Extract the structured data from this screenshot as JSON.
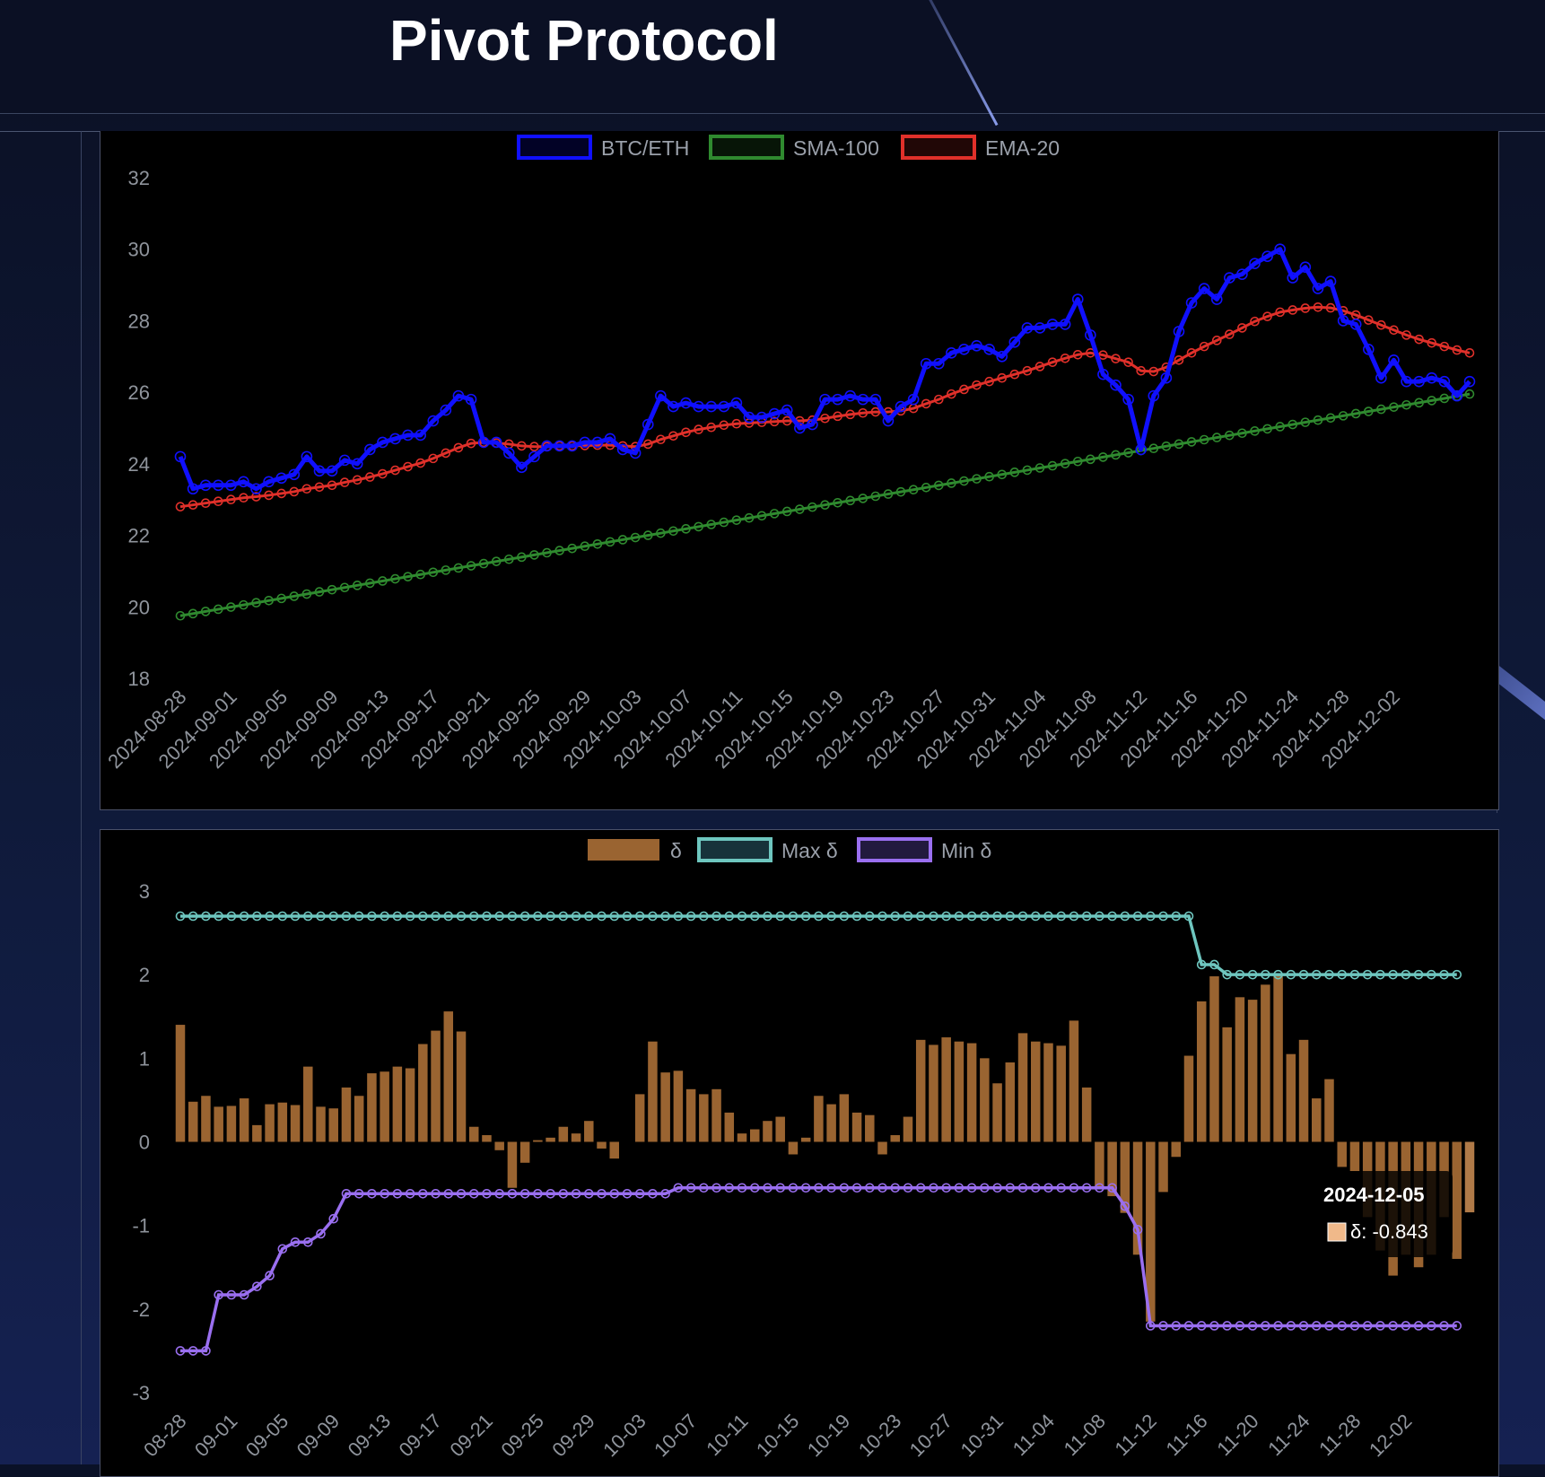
{
  "header": {
    "title": "Pivot Protocol"
  },
  "chart_data": [
    {
      "type": "line",
      "legend": [
        "BTC/ETH",
        "SMA-100",
        "EMA-20"
      ],
      "legend_placement": "top",
      "ylim": [
        18,
        32
      ],
      "yticks": [
        "32",
        "30",
        "28",
        "26",
        "24",
        "22",
        "20",
        "18"
      ],
      "xticks": [
        "2024-08-28",
        "2024-09-01",
        "2024-09-05",
        "2024-09-09",
        "2024-09-13",
        "2024-09-17",
        "2024-09-21",
        "2024-09-25",
        "2024-09-29",
        "2024-10-03",
        "2024-10-07",
        "2024-10-11",
        "2024-10-15",
        "2024-10-19",
        "2024-10-23",
        "2024-10-27",
        "2024-10-31",
        "2024-11-04",
        "2024-11-08",
        "2024-11-12",
        "2024-11-16",
        "2024-11-20",
        "2024-11-24",
        "2024-11-28",
        "2024-12-02"
      ],
      "x_start": "2024-08-28",
      "x_end": "2024-12-05",
      "series": [
        {
          "name": "BTC/ETH",
          "color": "#1010ff",
          "values": [
            24.2,
            23.3,
            23.4,
            23.4,
            23.4,
            23.5,
            23.3,
            23.5,
            23.6,
            23.7,
            24.2,
            23.8,
            23.8,
            24.1,
            24.0,
            24.4,
            24.6,
            24.7,
            24.8,
            24.8,
            25.2,
            25.5,
            25.9,
            25.8,
            24.6,
            24.6,
            24.3,
            23.9,
            24.2,
            24.5,
            24.5,
            24.5,
            24.6,
            24.6,
            24.7,
            24.4,
            24.3,
            25.1,
            25.9,
            25.6,
            25.7,
            25.6,
            25.6,
            25.6,
            25.7,
            25.3,
            25.3,
            25.4,
            25.5,
            25.0,
            25.1,
            25.8,
            25.8,
            25.9,
            25.8,
            25.8,
            25.2,
            25.6,
            25.8,
            26.8,
            26.8,
            27.1,
            27.2,
            27.3,
            27.2,
            27.0,
            27.4,
            27.8,
            27.8,
            27.9,
            27.9,
            28.6,
            27.6,
            26.5,
            26.2,
            25.8,
            24.4,
            25.9,
            26.4,
            27.7,
            28.5,
            28.9,
            28.6,
            29.2,
            29.3,
            29.6,
            29.8,
            30.0,
            29.2,
            29.5,
            28.9,
            29.1,
            28.0,
            27.9,
            27.2,
            26.4,
            26.9,
            26.3,
            26.3,
            26.4,
            26.3,
            25.9,
            26.3
          ]
        },
        {
          "name": "SMA-100",
          "color": "#2f8a2f",
          "values": [
            19.75,
            25.95
          ]
        },
        {
          "name": "EMA-20",
          "color": "#e0302a",
          "values": [
            22.8,
            22.85,
            22.9,
            22.95,
            23.0,
            23.05,
            23.08,
            23.12,
            23.17,
            23.22,
            23.3,
            23.35,
            23.4,
            23.48,
            23.55,
            23.63,
            23.72,
            23.82,
            23.92,
            24.02,
            24.15,
            24.3,
            24.45,
            24.57,
            24.6,
            24.58,
            24.55,
            24.5,
            24.48,
            24.48,
            24.5,
            24.5,
            24.51,
            24.52,
            24.52,
            24.5,
            24.48,
            24.55,
            24.68,
            24.78,
            24.88,
            24.96,
            25.02,
            25.08,
            25.12,
            25.14,
            25.16,
            25.18,
            25.2,
            25.2,
            25.22,
            25.27,
            25.33,
            25.38,
            25.42,
            25.45,
            25.45,
            25.48,
            25.55,
            25.68,
            25.8,
            25.95,
            26.08,
            26.2,
            26.3,
            26.4,
            26.5,
            26.6,
            26.72,
            26.84,
            26.95,
            27.05,
            27.1,
            27.04,
            26.94,
            26.84,
            26.6,
            26.58,
            26.7,
            26.9,
            27.1,
            27.28,
            27.45,
            27.62,
            27.8,
            27.98,
            28.12,
            28.24,
            28.3,
            28.35,
            28.38,
            28.36,
            28.28,
            28.16,
            28.02,
            27.88,
            27.74,
            27.6,
            27.48,
            27.38,
            27.28,
            27.18,
            27.1
          ]
        }
      ]
    },
    {
      "type": "bar",
      "legend": [
        "δ",
        "Max δ",
        "Min δ"
      ],
      "legend_placement": "top",
      "ylim": [
        -3,
        3
      ],
      "yticks": [
        "3",
        "2",
        "1",
        "0",
        "-1",
        "-2",
        "-3"
      ],
      "xticks": [
        "08-28",
        "09-01",
        "09-05",
        "09-09",
        "09-13",
        "09-17",
        "09-21",
        "09-25",
        "09-29",
        "10-03",
        "10-07",
        "10-11",
        "10-15",
        "10-19",
        "10-23",
        "10-27",
        "10-31",
        "11-04",
        "11-08",
        "11-12",
        "11-16",
        "11-20",
        "11-24",
        "11-28",
        "12-02"
      ],
      "series": [
        {
          "name": "δ",
          "color": "#9a6431",
          "values": [
            1.4,
            0.48,
            0.55,
            0.42,
            0.43,
            0.52,
            0.2,
            0.45,
            0.47,
            0.44,
            0.9,
            0.42,
            0.4,
            0.65,
            0.55,
            0.82,
            0.84,
            0.9,
            0.88,
            1.17,
            1.33,
            1.56,
            1.32,
            0.18,
            0.08,
            -0.1,
            -0.55,
            -0.25,
            0.02,
            0.05,
            0.18,
            0.1,
            0.25,
            -0.08,
            -0.2,
            0.0,
            0.57,
            1.2,
            0.83,
            0.85,
            0.63,
            0.57,
            0.63,
            0.35,
            0.1,
            0.15,
            0.25,
            0.3,
            -0.15,
            0.05,
            0.55,
            0.45,
            0.57,
            0.35,
            0.32,
            -0.15,
            0.08,
            0.3,
            1.22,
            1.16,
            1.25,
            1.2,
            1.18,
            1.0,
            0.7,
            0.95,
            1.3,
            1.2,
            1.18,
            1.15,
            1.45,
            0.65,
            -0.55,
            -0.65,
            -0.85,
            -1.35,
            -2.15,
            -0.6,
            -0.18,
            1.03,
            1.68,
            1.98,
            1.37,
            1.73,
            1.7,
            1.88,
            2.0,
            1.05,
            1.22,
            0.52,
            0.75,
            -0.3,
            -0.35,
            -0.9,
            -1.3,
            -1.6,
            -1.35,
            -1.5,
            -1.35,
            -0.9,
            -1.4,
            -0.843
          ]
        },
        {
          "name": "Max δ",
          "color": "#6ec6bf",
          "values": [
            2.7,
            2.12,
            2.0
          ]
        },
        {
          "name": "Min δ",
          "color": "#9a6ff0",
          "values": [
            -2.5,
            -2.5,
            -2.5,
            -1.83,
            -1.83,
            -1.83,
            -1.73,
            -1.6,
            -1.28,
            -1.2,
            -1.2,
            -1.1,
            -0.92,
            -0.62,
            -0.62,
            -0.62,
            -0.62,
            -0.62,
            -0.62,
            -0.62,
            -0.62,
            -0.62,
            -0.62,
            -0.62,
            -0.62,
            -0.62,
            -0.62,
            -0.62,
            -0.62,
            -0.62,
            -0.62,
            -0.62,
            -0.62,
            -0.62,
            -0.62,
            -0.62,
            -0.62,
            -0.62,
            -0.62,
            -0.55,
            -0.55,
            -0.55,
            -0.55,
            -0.55,
            -0.55,
            -0.55,
            -0.55,
            -0.55,
            -0.55,
            -0.55,
            -0.55,
            -0.55,
            -0.55,
            -0.55,
            -0.55,
            -0.55,
            -0.55,
            -0.55,
            -0.55,
            -0.55,
            -0.55,
            -0.55,
            -0.55,
            -0.55,
            -0.55,
            -0.55,
            -0.55,
            -0.55,
            -0.55,
            -0.55,
            -0.55,
            -0.55,
            -0.55,
            -0.55,
            -0.77,
            -1.05,
            -2.2
          ]
        }
      ],
      "tooltip": {
        "date": "2024-12-05",
        "label": "δ: -0.843"
      }
    }
  ]
}
